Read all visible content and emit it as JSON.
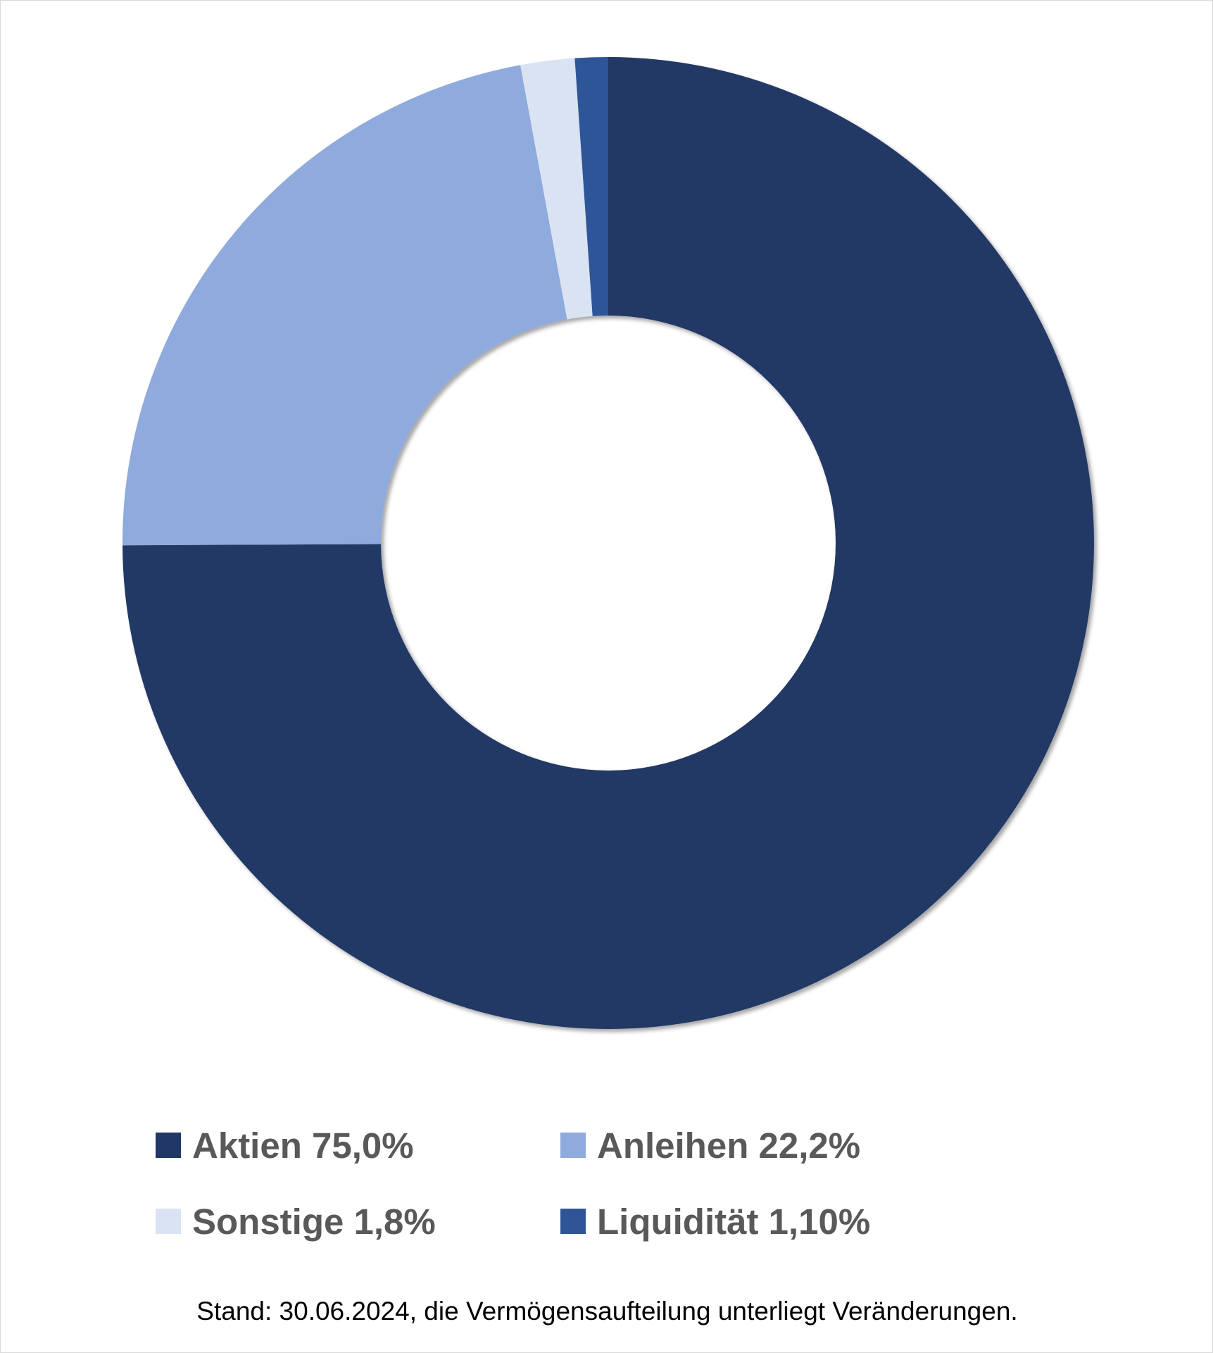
{
  "chart_data": {
    "type": "pie",
    "variant": "donut",
    "start_direction": "12 o'clock",
    "direction": "clockwise",
    "series": [
      {
        "name": "Aktien",
        "value": 75.0,
        "label": "Aktien 75,0%",
        "color": "#213765"
      },
      {
        "name": "Anleihen",
        "value": 22.2,
        "label": "Anleihen 22,2%",
        "color": "#8faadc"
      },
      {
        "name": "Sonstige",
        "value": 1.8,
        "label": "Sonstige 1,8%",
        "color": "#dae3f3"
      },
      {
        "name": "Liquidität",
        "value": 1.1,
        "label": "Liquidität 1,10%",
        "color": "#2f5597"
      }
    ],
    "legend_position": "bottom",
    "footnote": "Stand: 30.06.2024, die Vermögensaufteilung unterliegt Veränderungen."
  }
}
